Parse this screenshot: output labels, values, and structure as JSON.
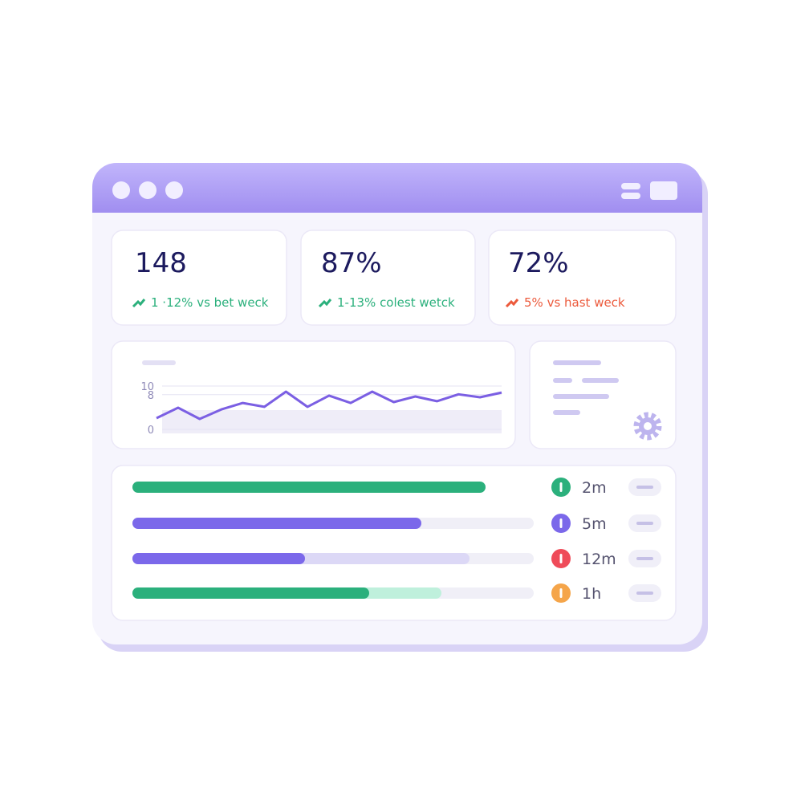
{
  "stats": [
    {
      "value": "148",
      "change": "1 ·12% vs bet weck",
      "color": "#2bb07c"
    },
    {
      "value": "87%",
      "change": "1-13% colest wetck",
      "color": "#2bb07c"
    },
    {
      "value": "72%",
      "change": "5% vs hast weck",
      "color": "#ec5a3c"
    }
  ],
  "chart": {
    "type": "line",
    "color": "#7b5fe3",
    "values": [
      2.6,
      5.0,
      2.4,
      4.6,
      6.1,
      5.2,
      8.7,
      5.2,
      7.8,
      6.1,
      8.7,
      6.3,
      7.6,
      6.5,
      8.1,
      7.4,
      8.5
    ],
    "ylim": [
      0,
      10
    ],
    "yticks": [
      0,
      8,
      10
    ],
    "grid": true
  },
  "tasks": {
    "xlim": [
      0,
      100
    ],
    "rows": [
      {
        "values": [
          88
        ],
        "colors": [
          "#2bb07c"
        ],
        "badge_color": "#2bb07c",
        "time": "2m"
      },
      {
        "values": [
          72
        ],
        "colors": [
          "#7b68ea"
        ],
        "badge_color": "#7b68ea",
        "time": "5m"
      },
      {
        "values": [
          43,
          84
        ],
        "colors": [
          "#7b68ea",
          "#dcd8f6"
        ],
        "badge_color": "#ef4b59",
        "time": "12m"
      },
      {
        "values": [
          59,
          77
        ],
        "colors": [
          "#2bb07c",
          "#bff0dc"
        ],
        "badge_color": "#f5a54a",
        "time": "1h"
      }
    ]
  }
}
